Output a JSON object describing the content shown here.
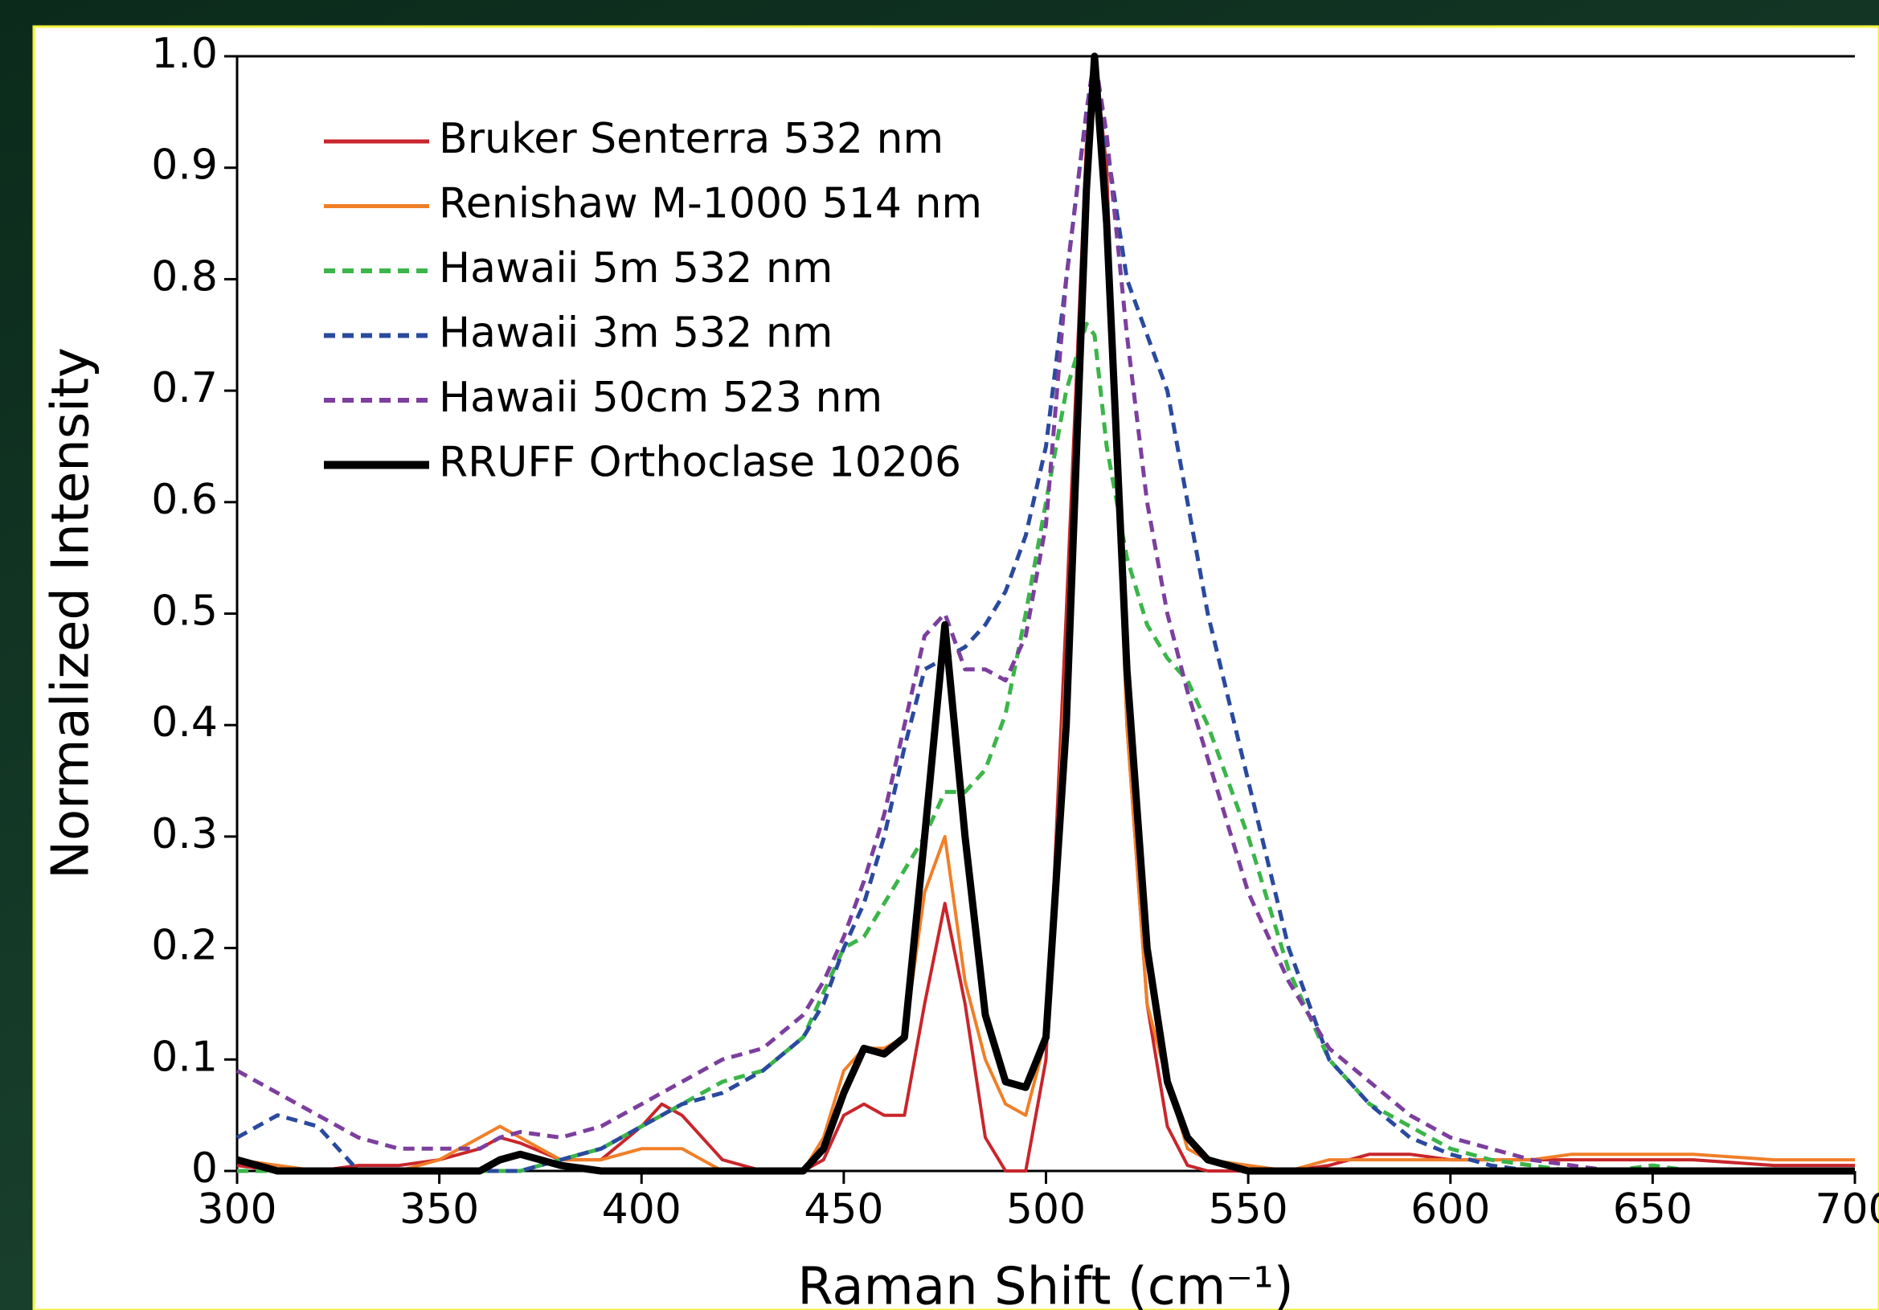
{
  "chart_data": {
    "type": "line",
    "x_label": "Raman Shift (cm⁻¹)",
    "y_label": "Normalized Intensity",
    "x": [
      300,
      310,
      320,
      330,
      340,
      350,
      360,
      365,
      370,
      380,
      390,
      400,
      405,
      410,
      420,
      430,
      440,
      445,
      450,
      455,
      460,
      465,
      470,
      475,
      480,
      485,
      490,
      495,
      500,
      505,
      510,
      512,
      515,
      520,
      525,
      530,
      535,
      540,
      550,
      560,
      570,
      580,
      590,
      600,
      610,
      620,
      630,
      640,
      650,
      660,
      680,
      700
    ],
    "series": [
      {
        "name": "Bruker Senterra 532 nm",
        "color": "#c8262c",
        "style": "solid",
        "linewidth": 4,
        "values": [
          0.005,
          0,
          0,
          0.005,
          0.005,
          0.01,
          0.02,
          0.03,
          0.025,
          0.01,
          0.01,
          0.04,
          0.06,
          0.05,
          0.01,
          0,
          0,
          0.01,
          0.05,
          0.06,
          0.05,
          0.05,
          0.15,
          0.24,
          0.15,
          0.03,
          0,
          0,
          0.1,
          0.5,
          0.92,
          1.0,
          0.9,
          0.4,
          0.15,
          0.04,
          0.005,
          0,
          0,
          0,
          0.005,
          0.015,
          0.015,
          0.01,
          0.01,
          0.01,
          0.01,
          0.01,
          0.01,
          0.01,
          0.005,
          0.005
        ]
      },
      {
        "name": "Renishaw M-1000 514 nm",
        "color": "#f07f28",
        "style": "solid",
        "linewidth": 4,
        "values": [
          0.01,
          0.005,
          0,
          0,
          0,
          0.01,
          0.03,
          0.04,
          0.03,
          0.01,
          0.01,
          0.02,
          0.02,
          0.02,
          0,
          0,
          0,
          0.03,
          0.09,
          0.11,
          0.11,
          0.12,
          0.25,
          0.3,
          0.17,
          0.1,
          0.06,
          0.05,
          0.12,
          0.45,
          0.9,
          0.97,
          0.85,
          0.4,
          0.15,
          0.08,
          0.02,
          0.01,
          0.005,
          0,
          0.01,
          0.01,
          0.01,
          0.01,
          0.01,
          0.01,
          0.015,
          0.015,
          0.015,
          0.015,
          0.01,
          0.01
        ]
      },
      {
        "name": "Hawaii 5m 532 nm",
        "color": "#3cb54a",
        "style": "dashed",
        "linewidth": 5,
        "values": [
          0,
          0,
          0,
          0,
          0,
          0,
          0,
          0,
          0,
          0.01,
          0.02,
          0.04,
          0.05,
          0.06,
          0.08,
          0.09,
          0.12,
          0.16,
          0.2,
          0.21,
          0.24,
          0.27,
          0.3,
          0.34,
          0.34,
          0.36,
          0.41,
          0.5,
          0.6,
          0.7,
          0.76,
          0.75,
          0.65,
          0.55,
          0.49,
          0.46,
          0.44,
          0.4,
          0.3,
          0.18,
          0.1,
          0.06,
          0.04,
          0.02,
          0.01,
          0.005,
          0,
          0,
          0.005,
          0,
          0,
          0
        ]
      },
      {
        "name": "Hawaii 3m 532 nm",
        "color": "#2a4a9e",
        "style": "dashed",
        "linewidth": 5,
        "values": [
          0.03,
          0.05,
          0.04,
          0,
          0,
          0,
          0,
          0,
          0,
          0.01,
          0.02,
          0.04,
          0.05,
          0.06,
          0.07,
          0.09,
          0.12,
          0.15,
          0.2,
          0.24,
          0.3,
          0.38,
          0.45,
          0.46,
          0.47,
          0.49,
          0.52,
          0.57,
          0.65,
          0.8,
          0.95,
          1.0,
          0.92,
          0.8,
          0.75,
          0.7,
          0.6,
          0.5,
          0.35,
          0.2,
          0.1,
          0.06,
          0.03,
          0.015,
          0.005,
          0,
          0,
          0,
          0,
          0,
          0,
          0
        ]
      },
      {
        "name": "Hawaii 50cm 523 nm",
        "color": "#7c3f9e",
        "style": "dashed",
        "linewidth": 5,
        "values": [
          0.09,
          0.07,
          0.05,
          0.03,
          0.02,
          0.02,
          0.02,
          0.03,
          0.035,
          0.03,
          0.04,
          0.06,
          0.07,
          0.08,
          0.1,
          0.11,
          0.14,
          0.17,
          0.21,
          0.26,
          0.32,
          0.4,
          0.48,
          0.5,
          0.45,
          0.45,
          0.44,
          0.48,
          0.58,
          0.8,
          0.95,
          1.0,
          0.93,
          0.75,
          0.6,
          0.5,
          0.43,
          0.37,
          0.25,
          0.17,
          0.11,
          0.08,
          0.05,
          0.03,
          0.02,
          0.01,
          0.005,
          0,
          0,
          0,
          0,
          0
        ]
      },
      {
        "name": "RRUFF Orthoclase 10206",
        "color": "#000000",
        "style": "solid",
        "linewidth": 9,
        "values": [
          0.01,
          0,
          0,
          0,
          0,
          0,
          0,
          0.01,
          0.015,
          0.005,
          0,
          0,
          0,
          0,
          0,
          0,
          0,
          0.02,
          0.07,
          0.11,
          0.105,
          0.12,
          0.3,
          0.49,
          0.3,
          0.14,
          0.08,
          0.075,
          0.12,
          0.4,
          0.88,
          1.0,
          0.85,
          0.45,
          0.2,
          0.08,
          0.03,
          0.01,
          0,
          0,
          0,
          0,
          0,
          0,
          0,
          0,
          0,
          0,
          0,
          0,
          0,
          0
        ]
      }
    ],
    "xlim": [
      300,
      700
    ],
    "xticks": [
      300,
      350,
      400,
      450,
      500,
      550,
      600,
      650,
      700
    ],
    "ylim": [
      0,
      1
    ],
    "yticks": [
      0,
      0.1,
      0.2,
      0.3,
      0.4,
      0.5,
      0.6,
      0.7,
      0.8,
      0.9,
      {
        "value": 1,
        "label": "1.0"
      }
    ],
    "legend": "upper-left"
  }
}
